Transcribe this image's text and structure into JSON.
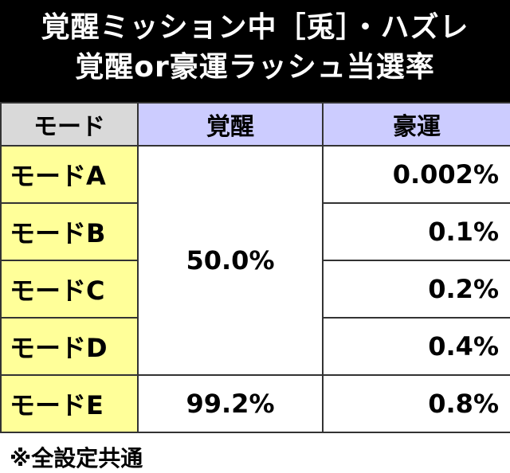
{
  "title": [
    "覚醒ミッション中［兎］・ハズレ",
    "覚醒or豪運ラッシュ当選率"
  ],
  "table": {
    "header": [
      "モード",
      "覚醒",
      "豪運"
    ],
    "rows": [
      {
        "mode": "モードA",
        "awakening": "50.0%",
        "luck": "0.002%"
      },
      {
        "mode": "モードB",
        "luck": "0.1%"
      },
      {
        "mode": "モードC",
        "luck": "0.2%"
      },
      {
        "mode": "モードD",
        "luck": "0.4%"
      },
      {
        "mode": "モードE",
        "awakening": "99.2%",
        "luck": "0.8%"
      }
    ]
  },
  "note": "※全設定共通"
}
